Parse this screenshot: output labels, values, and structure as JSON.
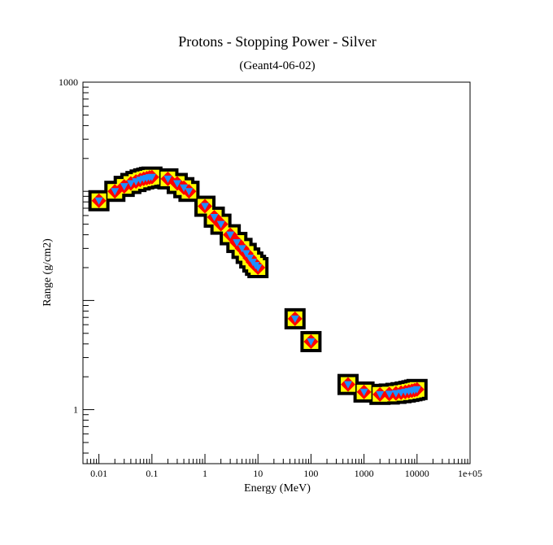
{
  "chart_data": {
    "type": "scatter",
    "title": "Protons - Stopping Power - Silver",
    "subtitle": "(Geant4-06-02)",
    "xlabel": "Energy (MeV)",
    "ylabel": "Range (g/cm2)",
    "x_scale": "log",
    "y_scale": "log",
    "xlim": [
      0.005,
      100000
    ],
    "ylim": [
      0.32,
      1000
    ],
    "x_ticks": [
      {
        "value": 0.01,
        "label": "0.01"
      },
      {
        "value": 0.1,
        "label": "0.1"
      },
      {
        "value": 1,
        "label": "1"
      },
      {
        "value": 10,
        "label": "10"
      },
      {
        "value": 100,
        "label": "100"
      },
      {
        "value": 1000,
        "label": "1000"
      },
      {
        "value": 10000,
        "label": "10000"
      },
      {
        "value": 100000,
        "label": "1e+05"
      }
    ],
    "y_ticks": [
      {
        "value": 1,
        "label": "1"
      },
      {
        "value": 1000,
        "label": "1000"
      }
    ],
    "grid": false,
    "legend": "none",
    "colors": {
      "outline": "#000000",
      "band": "#ffff00",
      "diamond": "#ff0000",
      "triangle": "#1e90ff"
    },
    "series": [
      {
        "marker": "triangle-down",
        "points": [
          {
            "x": 0.01,
            "y": 82
          },
          {
            "x": 0.02,
            "y": 100
          },
          {
            "x": 0.03,
            "y": 111
          },
          {
            "x": 0.04,
            "y": 118
          },
          {
            "x": 0.05,
            "y": 123
          },
          {
            "x": 0.06,
            "y": 127
          },
          {
            "x": 0.07,
            "y": 130
          },
          {
            "x": 0.08,
            "y": 132
          },
          {
            "x": 0.09,
            "y": 134
          },
          {
            "x": 0.1,
            "y": 135
          },
          {
            "x": 0.2,
            "y": 130
          },
          {
            "x": 0.3,
            "y": 118
          },
          {
            "x": 0.4,
            "y": 108
          },
          {
            "x": 0.5,
            "y": 100
          },
          {
            "x": 1,
            "y": 73
          },
          {
            "x": 1.5,
            "y": 58
          },
          {
            "x": 2,
            "y": 50
          },
          {
            "x": 3,
            "y": 40
          },
          {
            "x": 4,
            "y": 34
          },
          {
            "x": 5,
            "y": 30
          },
          {
            "x": 6,
            "y": 27
          },
          {
            "x": 7,
            "y": 24.5
          },
          {
            "x": 8,
            "y": 22.5
          },
          {
            "x": 9,
            "y": 21
          },
          {
            "x": 10,
            "y": 20
          },
          {
            "x": 50,
            "y": 6.8
          },
          {
            "x": 100,
            "y": 4.2
          },
          {
            "x": 500,
            "y": 1.7
          },
          {
            "x": 1000,
            "y": 1.45
          },
          {
            "x": 2000,
            "y": 1.38
          },
          {
            "x": 3000,
            "y": 1.39
          },
          {
            "x": 4000,
            "y": 1.41
          },
          {
            "x": 5000,
            "y": 1.43
          },
          {
            "x": 6000,
            "y": 1.45
          },
          {
            "x": 7000,
            "y": 1.47
          },
          {
            "x": 8000,
            "y": 1.49
          },
          {
            "x": 9000,
            "y": 1.51
          },
          {
            "x": 10000,
            "y": 1.53
          }
        ]
      }
    ]
  }
}
